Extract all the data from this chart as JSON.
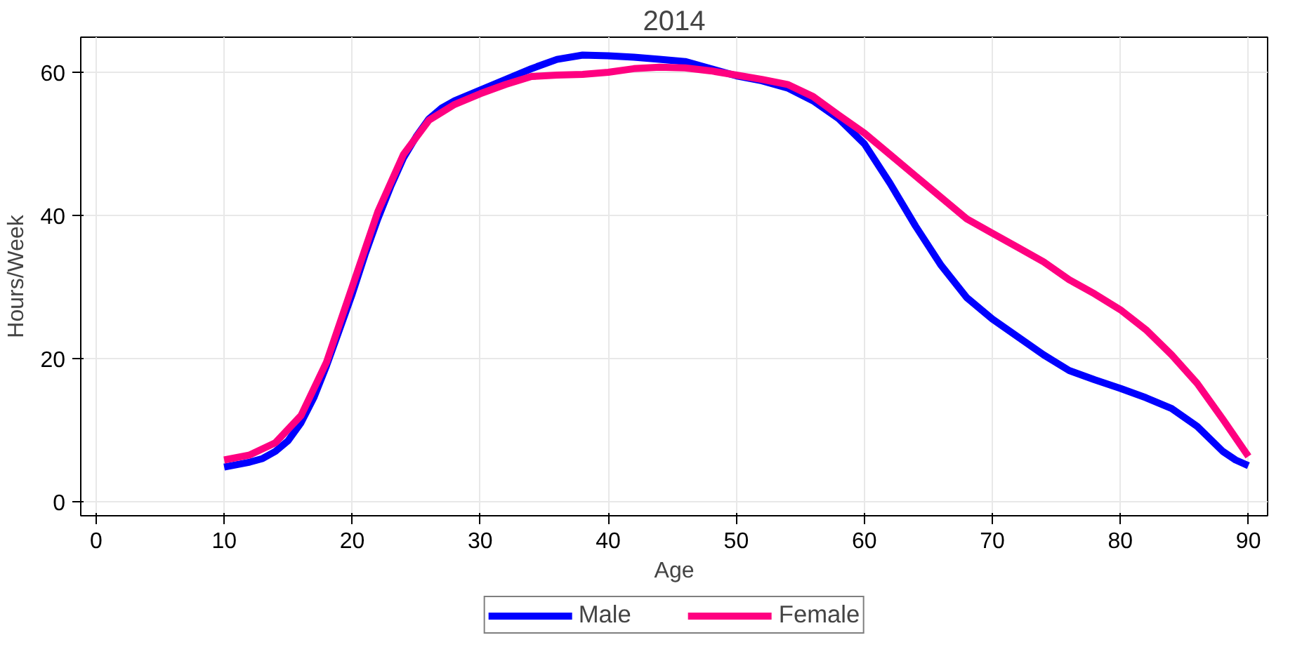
{
  "chart_data": {
    "type": "line",
    "title": "2014",
    "xlabel": "Age",
    "ylabel": "Hours/Week",
    "xlim": [
      -1.2,
      91.5
    ],
    "ylim": [
      -2,
      64.9
    ],
    "xticks": [
      0,
      10,
      20,
      30,
      40,
      50,
      60,
      70,
      80,
      90
    ],
    "yticks": [
      0,
      20,
      40,
      60
    ],
    "grid": true,
    "legend": "bottom",
    "line_style": "solid",
    "series": [
      {
        "name": "Male",
        "color": "#0000ff",
        "x": [
          10,
          12,
          13,
          14,
          15,
          16,
          17,
          18,
          19,
          20,
          21,
          22,
          23,
          24,
          25,
          26,
          27,
          28,
          30,
          32,
          34,
          36,
          38,
          40,
          42,
          44,
          46,
          48,
          50,
          52,
          54,
          56,
          58,
          60,
          62,
          64,
          66,
          68,
          70,
          72,
          74,
          76,
          78,
          80,
          82,
          84,
          86,
          88,
          89,
          90
        ],
        "values": [
          4.8,
          5.5,
          6,
          7,
          8.5,
          11,
          14.5,
          19,
          24,
          29,
          34.5,
          39.5,
          44,
          48,
          51,
          53.5,
          55,
          56,
          57.5,
          59,
          60.5,
          61.8,
          62.4,
          62.3,
          62.1,
          61.8,
          61.5,
          60.5,
          59.5,
          58.8,
          57.8,
          56,
          53.5,
          50,
          44.5,
          38.5,
          33,
          28.5,
          25.5,
          23,
          20.5,
          18.3,
          17,
          15.8,
          14.5,
          13,
          10.5,
          7,
          5.8,
          5
        ]
      },
      {
        "name": "Female",
        "color": "#ff0080",
        "x": [
          10,
          12,
          14,
          16,
          18,
          20,
          22,
          24,
          26,
          28,
          30,
          32,
          34,
          36,
          38,
          40,
          42,
          44,
          46,
          48,
          50,
          52,
          54,
          56,
          58,
          60,
          62,
          64,
          66,
          68,
          70,
          72,
          74,
          76,
          78,
          80,
          82,
          84,
          86,
          88,
          90
        ],
        "values": [
          5.8,
          6.5,
          8.2,
          12,
          19.5,
          30,
          40.5,
          48.5,
          53.3,
          55.5,
          57,
          58.3,
          59.4,
          59.6,
          59.7,
          60,
          60.5,
          60.7,
          60.6,
          60.2,
          59.6,
          59,
          58.3,
          56.6,
          54,
          51.5,
          48.5,
          45.5,
          42.5,
          39.5,
          37.5,
          35.5,
          33.5,
          31,
          29,
          26.8,
          24,
          20.5,
          16.5,
          11.5,
          6.3
        ]
      }
    ]
  }
}
